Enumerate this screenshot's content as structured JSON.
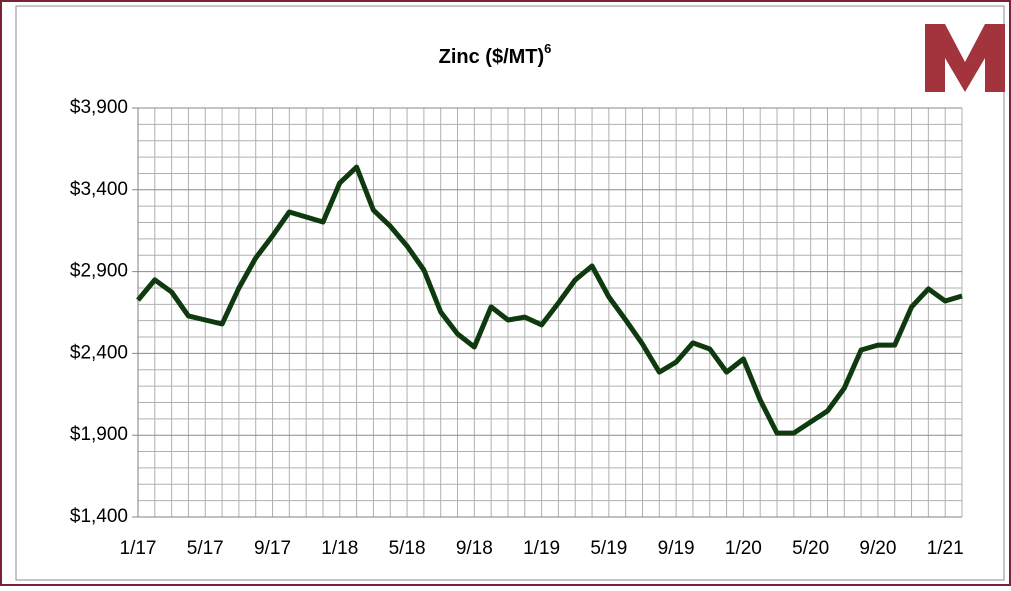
{
  "chart_data": {
    "type": "line",
    "title": "Zinc ($/MT)",
    "title_superscript": "6",
    "categories": [
      "1/17",
      null,
      null,
      null,
      "5/17",
      null,
      null,
      null,
      "9/17",
      null,
      null,
      null,
      "1/18",
      null,
      null,
      null,
      "5/18",
      null,
      null,
      null,
      "9/18",
      null,
      null,
      null,
      "1/19",
      null,
      null,
      null,
      "5/19",
      null,
      null,
      null,
      "9/19",
      null,
      null,
      null,
      "1/20",
      null,
      null,
      null,
      "5/20",
      null,
      null,
      null,
      "9/20",
      null,
      null,
      null,
      "1/21",
      null
    ],
    "series": [
      {
        "name": "Zinc",
        "color": "#0f3a0f",
        "values": [
          2726,
          2849,
          2775,
          2629,
          2604,
          2580,
          2800,
          2983,
          3118,
          3264,
          3234,
          3203,
          3442,
          3539,
          3276,
          3178,
          3056,
          2910,
          2653,
          2519,
          2439,
          2684,
          2604,
          2622,
          2574,
          2708,
          2849,
          2934,
          2745,
          2604,
          2457,
          2286,
          2347,
          2464,
          2427,
          2286,
          2366,
          2115,
          1913,
          1913,
          1981,
          2048,
          2188,
          2421,
          2451,
          2451,
          2684,
          2794,
          2720,
          2751
        ]
      }
    ],
    "ylim": [
      1400,
      3900
    ],
    "yticks": [
      {
        "value": 1400,
        "label": "$1,400"
      },
      {
        "value": 1900,
        "label": "$1,900"
      },
      {
        "value": 2400,
        "label": "$2,400"
      },
      {
        "value": 2900,
        "label": "$2,900"
      },
      {
        "value": 3400,
        "label": "$3,400"
      },
      {
        "value": 3900,
        "label": "$3,900"
      }
    ],
    "grid": true
  }
}
